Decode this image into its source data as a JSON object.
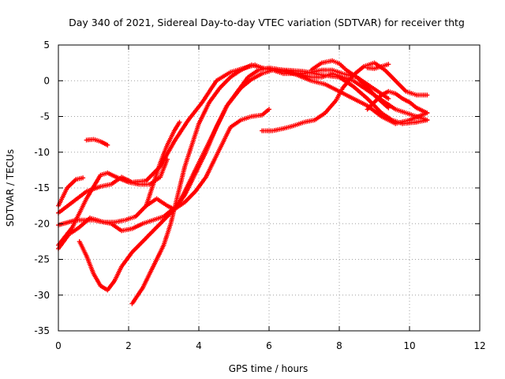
{
  "chart_data": {
    "type": "scatter",
    "title": "Day 340 of 2021, Sidereal Day-to-day VTEC variation (SDTVAR) for receiver thtg",
    "xlabel": "GPS time / hours",
    "ylabel": "SDTVAR / TECUs",
    "xlim": [
      0,
      12
    ],
    "ylim": [
      -35,
      5
    ],
    "xticks": [
      0,
      2,
      4,
      6,
      8,
      10,
      12
    ],
    "yticks": [
      -35,
      -30,
      -25,
      -20,
      -15,
      -10,
      -5,
      0,
      5
    ],
    "grid": true,
    "marker": "+",
    "color": "#ff0000",
    "series": [
      {
        "x": [
          0,
          0.25,
          0.5,
          0.7
        ],
        "y": [
          -17.5,
          -15,
          -13.8,
          -13.6
        ]
      },
      {
        "x": [
          0,
          0.4,
          0.8,
          1.2,
          1.5,
          1.8,
          2.1,
          2.5,
          2.9,
          3.3,
          3.7,
          4.1,
          4.5,
          4.9,
          5.3,
          5.6,
          5.8,
          6.1,
          6.5,
          7.0,
          7.5,
          7.8,
          8.1,
          8.5,
          8.8,
          9.1,
          9.4
        ],
        "y": [
          -18.5,
          -17,
          -15.5,
          -14.8,
          -14.5,
          -13.5,
          -14.2,
          -14,
          -12,
          -8.5,
          -5.5,
          -3,
          0,
          1.2,
          1.8,
          2.2,
          1.8,
          1.5,
          1.2,
          1,
          1.5,
          1.5,
          1,
          0.5,
          -0.5,
          -1.5,
          -2.5
        ]
      },
      {
        "x": [
          0,
          0.4,
          0.8,
          1.2,
          1.4,
          1.7,
          2.0,
          2.3,
          2.6,
          2.9,
          3.1
        ],
        "y": [
          -23,
          -20.5,
          -16.5,
          -13.2,
          -12.9,
          -13.6,
          -14.2,
          -14.5,
          -14.5,
          -13.5,
          -11
        ]
      },
      {
        "x": [
          0,
          0.5,
          1.0,
          1.5,
          1.8,
          2.1,
          2.4,
          2.7,
          3.0,
          3.2,
          3.4,
          3.7,
          4.0,
          4.4,
          4.8,
          5.2,
          5.5,
          5.8,
          6.1,
          6.5,
          7.0,
          7.5,
          8.0,
          8.4,
          8.8,
          9.2,
          9.5,
          9.8,
          10.2,
          10.5
        ],
        "y": [
          -20.2,
          -19.5,
          -19.5,
          -20,
          -21,
          -20.7,
          -20,
          -19.5,
          -19,
          -18.2,
          -17.5,
          -14.5,
          -11.5,
          -7.5,
          -3.5,
          -1,
          0.2,
          1,
          1.5,
          1.5,
          1.3,
          0.8,
          0.5,
          -0.8,
          -2.5,
          -4.5,
          -5.5,
          -6,
          -5.8,
          -5.5
        ]
      },
      {
        "x": [
          0,
          0.3,
          0.6,
          0.9,
          1.1,
          1.3,
          1.6,
          1.9,
          2.2,
          2.5,
          2.8,
          3.1,
          3.3,
          3.6,
          3.9,
          4.2,
          4.5,
          4.9,
          5.2,
          5.5,
          5.8,
          6.0
        ],
        "y": [
          -23.5,
          -21.5,
          -20.5,
          -19.2,
          -19.5,
          -19.8,
          -19.8,
          -19.5,
          -19,
          -17.5,
          -16.5,
          -17.5,
          -18,
          -17,
          -15.5,
          -13.5,
          -10.5,
          -6.5,
          -5.5,
          -5,
          -4.8,
          -4
        ]
      },
      {
        "x": [
          0.8,
          1.0,
          1.2,
          1.4
        ],
        "y": [
          -8.3,
          -8.2,
          -8.5,
          -9
        ]
      },
      {
        "x": [
          0.6,
          0.8,
          1.0,
          1.2,
          1.4,
          1.6,
          1.8,
          2.1,
          2.4,
          2.7,
          3.0,
          3.3,
          3.6,
          3.9,
          4.2,
          4.5,
          4.8,
          5.1,
          5.4,
          5.7,
          6.0,
          6.4,
          6.8,
          7.2,
          7.6,
          8.0,
          8.4,
          8.8,
          9.2,
          9.6,
          10.0,
          10.5
        ],
        "y": [
          -22.5,
          -24.5,
          -27,
          -28.7,
          -29.3,
          -28,
          -26,
          -24,
          -22.5,
          -21,
          -19.5,
          -18,
          -16,
          -13,
          -10,
          -6.5,
          -3.5,
          -1.5,
          0.5,
          1.5,
          1.8,
          1.5,
          0.8,
          0,
          -0.5,
          -1.5,
          -2.5,
          -3.5,
          -5,
          -6,
          -5.5,
          -4.5
        ]
      },
      {
        "x": [
          2.1,
          2.4,
          2.7,
          3.0,
          3.2,
          3.4,
          3.6,
          3.8,
          4.0,
          4.3,
          4.6,
          4.9,
          5.2,
          5.5,
          5.8,
          6.1,
          6.4,
          6.8,
          7.2,
          7.5,
          7.8,
          8.1,
          8.4,
          8.7,
          9.0,
          9.3,
          9.6,
          9.9,
          10.2,
          10.5
        ],
        "y": [
          -31.2,
          -29,
          -26,
          -23,
          -20,
          -16,
          -12,
          -9,
          -6,
          -3,
          -1,
          0.5,
          1.5,
          2.2,
          1.8,
          1.5,
          1,
          1,
          0.5,
          0.5,
          1,
          0.5,
          0,
          -1,
          -2,
          -3,
          -4,
          -4.5,
          -5,
          -5.5
        ]
      },
      {
        "x": [
          2.5,
          2.7,
          2.9,
          3.1,
          3.3,
          3.45
        ],
        "y": [
          -17.5,
          -14.5,
          -11.5,
          -9,
          -7,
          -5.8
        ]
      },
      {
        "x": [
          5.8,
          6.1,
          6.4,
          6.7,
          7.0,
          7.3,
          7.6,
          7.9,
          8.1,
          8.4,
          8.7,
          9.0,
          9.3,
          9.6,
          9.9,
          10.2,
          10.5
        ],
        "y": [
          -7,
          -7,
          -6.7,
          -6.3,
          -5.8,
          -5.5,
          -4.5,
          -2.8,
          -1,
          0.8,
          2,
          2.5,
          1.5,
          0,
          -1.5,
          -2,
          -2
        ]
      },
      {
        "x": [
          7.2,
          7.5,
          7.8,
          8.0,
          8.2,
          8.5,
          8.8,
          9.1,
          9.4
        ],
        "y": [
          1.5,
          2.5,
          2.8,
          2.4,
          1.5,
          0.5,
          -1,
          -2.5,
          -3.8
        ]
      },
      {
        "x": [
          8.8,
          9.0,
          9.2,
          9.4,
          9.6,
          9.8,
          10.0,
          10.2,
          10.5
        ],
        "y": [
          -4,
          -3,
          -2,
          -1.5,
          -1.8,
          -2.5,
          -3,
          -3.8,
          -4.5
        ]
      },
      {
        "x": [
          8.8,
          9.0,
          9.2,
          9.4
        ],
        "y": [
          1.8,
          1.7,
          2,
          2.3
        ]
      }
    ]
  }
}
